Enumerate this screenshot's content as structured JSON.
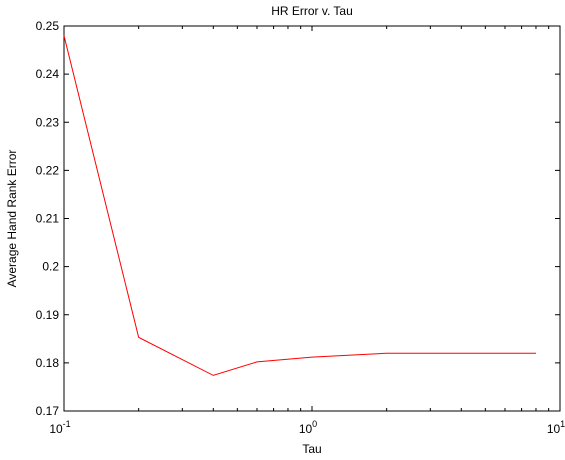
{
  "chart_data": {
    "type": "line",
    "title": "HR Error v. Tau",
    "xlabel": "Tau",
    "ylabel": "Average Hand Rank Error",
    "xscale": "log",
    "xlim": [
      0.1,
      10
    ],
    "ylim": [
      0.17,
      0.25
    ],
    "xticks": [
      {
        "value": 0.1,
        "base": "10",
        "exp": "-1"
      },
      {
        "value": 1,
        "base": "10",
        "exp": "0"
      },
      {
        "value": 10,
        "base": "10",
        "exp": "1"
      }
    ],
    "yticks": [
      {
        "value": 0.17,
        "label": "0.17"
      },
      {
        "value": 0.18,
        "label": "0.18"
      },
      {
        "value": 0.19,
        "label": "0.19"
      },
      {
        "value": 0.2,
        "label": "0.2"
      },
      {
        "value": 0.21,
        "label": "0.21"
      },
      {
        "value": 0.22,
        "label": "0.22"
      },
      {
        "value": 0.23,
        "label": "0.23"
      },
      {
        "value": 0.24,
        "label": "0.24"
      },
      {
        "value": 0.25,
        "label": "0.25"
      }
    ],
    "grid": false,
    "series": [
      {
        "color": "#ff0000",
        "x": [
          0.1,
          0.2,
          0.4,
          0.6,
          1.0,
          2.0,
          4.0,
          8.0
        ],
        "y": [
          0.248,
          0.1853,
          0.1774,
          0.1802,
          0.1812,
          0.182,
          0.182,
          0.182
        ]
      }
    ]
  }
}
